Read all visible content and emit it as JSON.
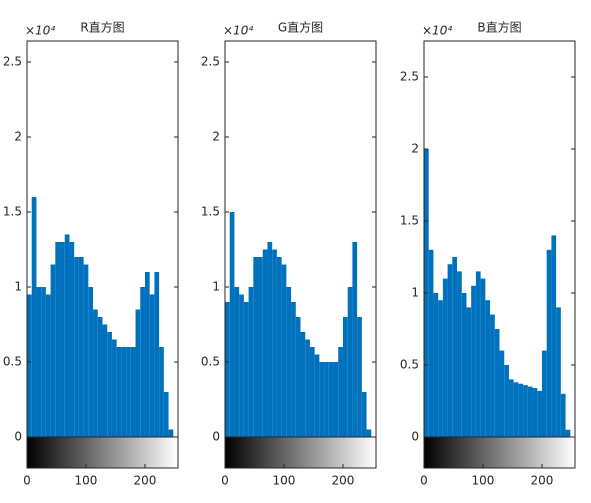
{
  "chart_data": [
    {
      "type": "histogram",
      "title": "R直方图",
      "y_exponent": "×10⁴",
      "color": "#0072bd",
      "bins": [
        0,
        8,
        16,
        24,
        32,
        40,
        48,
        56,
        64,
        72,
        80,
        88,
        96,
        104,
        112,
        120,
        128,
        136,
        144,
        152,
        160,
        168,
        176,
        184,
        192,
        200,
        208,
        216,
        224,
        232,
        240,
        248,
        256
      ],
      "values": [
        0.95,
        1.6,
        1.0,
        1.0,
        0.95,
        1.15,
        1.3,
        1.3,
        1.35,
        1.3,
        1.2,
        1.2,
        1.15,
        1.0,
        0.85,
        0.8,
        0.75,
        0.7,
        0.65,
        0.6,
        0.6,
        0.6,
        0.6,
        0.85,
        1.0,
        1.1,
        0.95,
        1.1,
        0.6,
        0.3,
        0.05,
        0
      ],
      "xlim": [
        0,
        256
      ],
      "xticks": [
        0,
        100,
        200
      ],
      "ylim": [
        0,
        2.64
      ],
      "yticks": [
        0,
        0.5,
        1,
        1.5,
        2,
        2.5
      ]
    },
    {
      "type": "histogram",
      "title": "G直方图",
      "y_exponent": "×10⁴",
      "color": "#0072bd",
      "bins": [
        0,
        8,
        16,
        24,
        32,
        40,
        48,
        56,
        64,
        72,
        80,
        88,
        96,
        104,
        112,
        120,
        128,
        136,
        144,
        152,
        160,
        168,
        176,
        184,
        192,
        200,
        208,
        216,
        224,
        232,
        240,
        248,
        256
      ],
      "values": [
        0.9,
        1.5,
        1.0,
        0.95,
        0.9,
        1.0,
        1.2,
        1.2,
        1.25,
        1.3,
        1.25,
        1.2,
        1.15,
        1.0,
        0.9,
        0.8,
        0.7,
        0.65,
        0.6,
        0.55,
        0.5,
        0.5,
        0.5,
        0.5,
        0.6,
        0.8,
        1.0,
        1.3,
        0.8,
        0.3,
        0.05,
        0
      ],
      "xlim": [
        0,
        256
      ],
      "xticks": [
        0,
        100,
        200
      ],
      "ylim": [
        0,
        2.64
      ],
      "yticks": [
        0,
        0.5,
        1,
        1.5,
        2,
        2.5
      ]
    },
    {
      "type": "histogram",
      "title": "B直方图",
      "y_exponent": "×10⁴",
      "color": "#0072bd",
      "bins": [
        0,
        8,
        16,
        24,
        32,
        40,
        48,
        56,
        64,
        72,
        80,
        88,
        96,
        104,
        112,
        120,
        128,
        136,
        144,
        152,
        160,
        168,
        176,
        184,
        192,
        200,
        208,
        216,
        224,
        232,
        240,
        248,
        256
      ],
      "values": [
        2.0,
        1.3,
        1.0,
        0.95,
        1.1,
        1.2,
        1.25,
        1.15,
        1.0,
        0.9,
        1.05,
        1.15,
        1.1,
        0.95,
        0.85,
        0.75,
        0.6,
        0.5,
        0.4,
        0.38,
        0.37,
        0.36,
        0.35,
        0.34,
        0.32,
        0.6,
        1.3,
        1.4,
        0.9,
        0.3,
        0.05,
        0
      ],
      "xlim": [
        0,
        256
      ],
      "xticks": [
        0,
        100,
        200
      ],
      "ylim": [
        0,
        2.75
      ],
      "yticks": [
        0,
        0.5,
        1,
        1.5,
        2,
        2.5
      ]
    }
  ]
}
